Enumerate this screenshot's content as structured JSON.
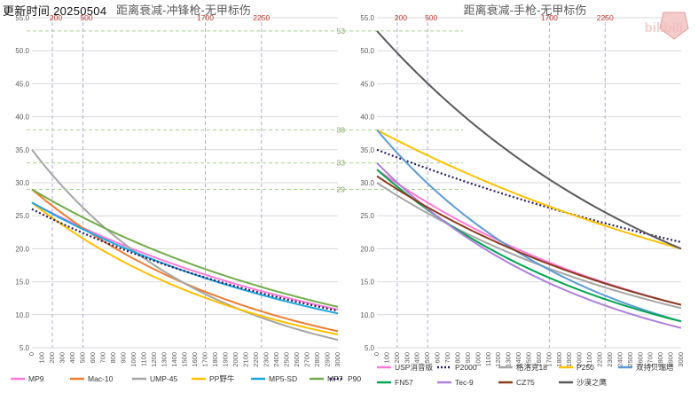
{
  "header": {
    "update_label": "更新时间",
    "update_date": "20250504"
  },
  "watermark": "bilibili",
  "chart_data": [
    {
      "type": "line",
      "title": "距离衰减-冲锋枪-无甲标伤",
      "x": [
        0,
        100,
        200,
        300,
        400,
        500,
        600,
        700,
        800,
        900,
        1000,
        1100,
        1200,
        1300,
        1400,
        1500,
        1600,
        1700,
        1800,
        1900,
        2000,
        2100,
        2200,
        2300,
        2400,
        2500,
        2600,
        2700,
        2800,
        2900,
        3000
      ],
      "xlim": [
        0,
        3000
      ],
      "ylim": [
        5,
        55
      ],
      "yticks": [
        "5.0",
        "10.0",
        "15.0",
        "20.0",
        "25.0",
        "30.0",
        "35.0",
        "40.0",
        "45.0",
        "50.0",
        "55.0"
      ],
      "ref_x": [
        {
          "value": 200,
          "label": "200"
        },
        {
          "value": 500,
          "label": "500"
        },
        {
          "value": 1700,
          "label": "1700"
        },
        {
          "value": 2250,
          "label": "2250"
        }
      ],
      "ref_y": [
        {
          "value": 53,
          "label": "53"
        },
        {
          "value": 38,
          "label": "38"
        },
        {
          "value": 33,
          "label": "33"
        },
        {
          "value": 29,
          "label": "29"
        }
      ],
      "series": [
        {
          "name": "MP9",
          "color": "#ff7ad9",
          "dash": false,
          "start": 27.0,
          "end": 10.8
        },
        {
          "name": "Mac-10",
          "color": "#ed7d31",
          "dash": false,
          "start": 29.0,
          "end": 7.5
        },
        {
          "name": "UMP-45",
          "color": "#a5a5a5",
          "dash": false,
          "start": 35.0,
          "end": 6.2
        },
        {
          "name": "PP野牛",
          "color": "#ffc000",
          "dash": false,
          "start": 27.0,
          "end": 7.0
        },
        {
          "name": "MP5-SD",
          "color": "#1aa7e0",
          "dash": false,
          "start": 27.0,
          "end": 10.2
        },
        {
          "name": "MP7",
          "color": "#70ad47",
          "dash": false,
          "start": 29.0,
          "end": 11.2
        },
        {
          "name": "P90",
          "color": "#2b1a5c",
          "dash": true,
          "start": 26.0,
          "end": 10.6
        }
      ]
    },
    {
      "type": "line",
      "title": "距离衰减-手枪-无甲标伤",
      "x": [
        0,
        100,
        200,
        300,
        400,
        500,
        600,
        700,
        800,
        900,
        1000,
        1100,
        1200,
        1300,
        1400,
        1500,
        1600,
        1700,
        1800,
        1900,
        2000,
        2100,
        2200,
        2300,
        2400,
        2500,
        2600,
        2700,
        2800,
        2900,
        3000
      ],
      "xlim": [
        0,
        3000
      ],
      "ylim": [
        5,
        55
      ],
      "yticks": [
        "5.0",
        "10.0",
        "15.0",
        "20.0",
        "25.0",
        "30.0",
        "35.0",
        "40.0",
        "45.0",
        "50.0",
        "55.0"
      ],
      "ref_x": [
        {
          "value": 200,
          "label": "200"
        },
        {
          "value": 500,
          "label": "500"
        },
        {
          "value": 1700,
          "label": "1700"
        },
        {
          "value": 2250,
          "label": "2250"
        }
      ],
      "series": [
        {
          "name": "USP消音版",
          "color": "#ff7ad9",
          "dash": false,
          "start": 32.0,
          "end": 11.5
        },
        {
          "name": "P2000",
          "color": "#2b1a5c",
          "dash": true,
          "start": 35.0,
          "end": 21.0
        },
        {
          "name": "格洛克18",
          "color": "#a5a5a5",
          "dash": false,
          "start": 30.0,
          "end": 11.0
        },
        {
          "name": "P250",
          "color": "#ffc000",
          "dash": false,
          "start": 38.0,
          "end": 20.0
        },
        {
          "name": "双持贝瑞塔",
          "color": "#5b9bd5",
          "dash": false,
          "start": 38.0,
          "end": 9.0
        },
        {
          "name": "FN57",
          "color": "#00a651",
          "dash": false,
          "start": 32.0,
          "end": 9.0
        },
        {
          "name": "Tec-9",
          "color": "#b07fdc",
          "dash": false,
          "start": 33.0,
          "end": 8.0
        },
        {
          "name": "CZ75",
          "color": "#8b3a1a",
          "dash": false,
          "start": 31.0,
          "end": 11.5
        },
        {
          "name": "沙漠之鹰",
          "color": "#595959",
          "dash": false,
          "start": 53.0,
          "end": 20.0
        }
      ]
    }
  ]
}
